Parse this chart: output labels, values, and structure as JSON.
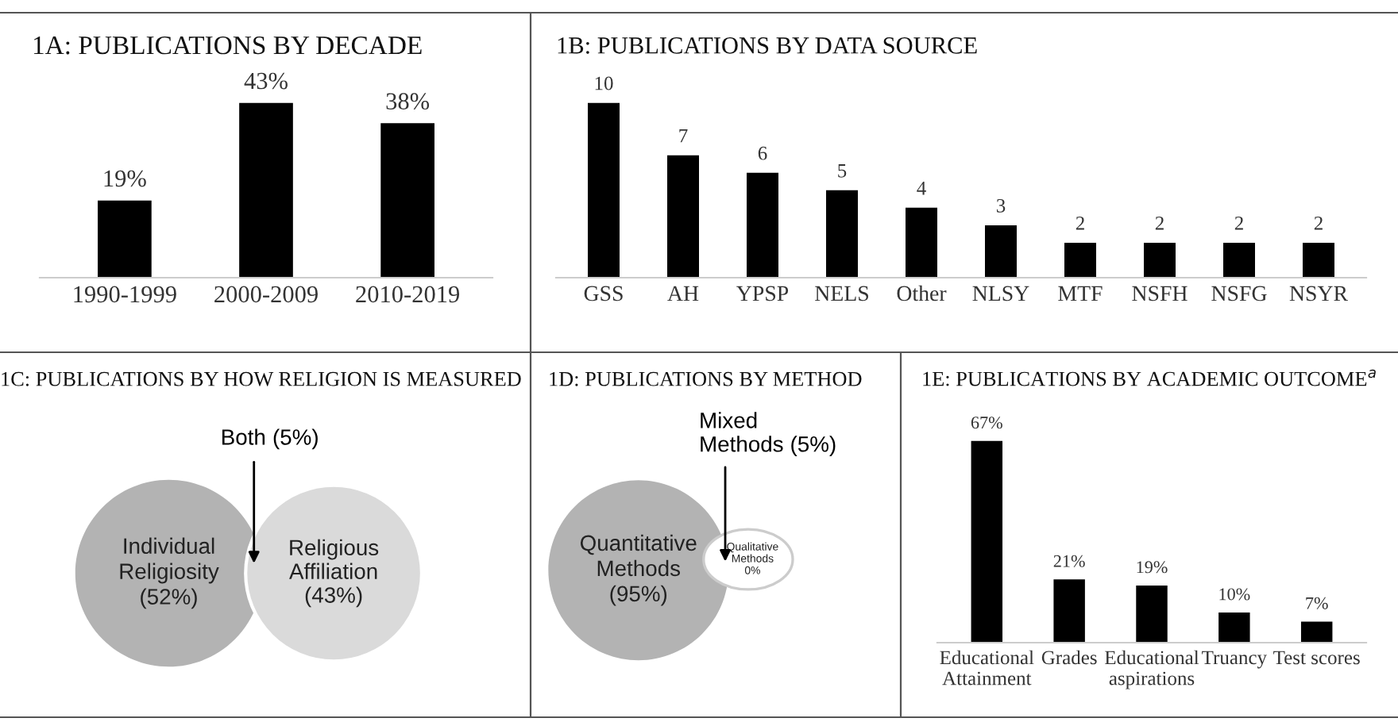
{
  "chart_data": [
    {
      "type": "bar",
      "title": "1A: PUBLICATIONS BY DECADE",
      "categories": [
        "1990-1999",
        "2000-2009",
        "2010-2019"
      ],
      "values": [
        19,
        43,
        38
      ],
      "value_labels": [
        "19%",
        "43%",
        "38%"
      ],
      "color": "#000000",
      "grid": false,
      "legend": false
    },
    {
      "type": "bar",
      "title": "1B: PUBLICATIONS BY DATA SOURCE",
      "categories": [
        "GSS",
        "AH",
        "YPSP",
        "NELS",
        "Other",
        "NLSY",
        "MTF",
        "NSFH",
        "NSFG",
        "NSYR"
      ],
      "values": [
        10,
        7,
        6,
        5,
        4,
        3,
        2,
        2,
        2,
        2
      ],
      "data_labels": true,
      "color": "#000000",
      "grid": false,
      "legend": false
    },
    {
      "type": "other",
      "title": "1C: PUBLICATIONS BY HOW RELIGION IS MEASURED",
      "categories": [
        "Individual\nReligiosity",
        "Religious\nAffiliation",
        "Both"
      ],
      "values": [
        52,
        43,
        5
      ],
      "value_labels": [
        "(52%)",
        "(43%)",
        "(5%)"
      ],
      "colors": [
        "#b3b3b3",
        "#dadada",
        null
      ]
    },
    {
      "type": "other",
      "title": "1D: PUBLICATIONS BY METHOD",
      "categories": [
        "Quantitative\nMethods",
        "Qualitative\nMethods",
        "Mixed\nMethods"
      ],
      "values": [
        95,
        0,
        5
      ],
      "value_labels": [
        "(95%)",
        "0%",
        "(5%)"
      ],
      "colors": [
        "#b3b3b3",
        "#ffffff",
        null
      ]
    },
    {
      "type": "bar",
      "title": "1E: PUBLICATIONS BY ACADEMIC OUTCOME$^{a}$",
      "categories": [
        "Educational\nAttainment",
        "Grades",
        "Educational\naspirations",
        "Truancy",
        "Test scores"
      ],
      "values": [
        67,
        21,
        19,
        10,
        7
      ],
      "value_labels": [
        "67%",
        "21%",
        "19%",
        "10%",
        "7%"
      ],
      "color": "#000000",
      "grid": false,
      "legend": false
    }
  ]
}
